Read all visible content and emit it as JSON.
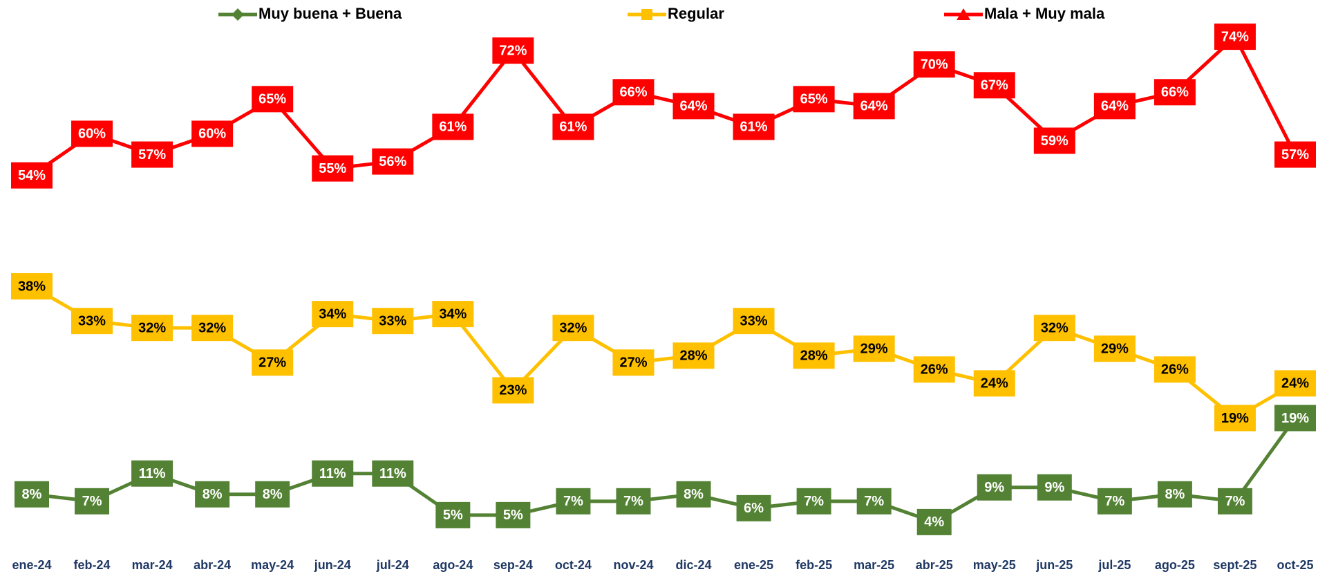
{
  "chart_data": {
    "type": "line",
    "categories": [
      "ene-24",
      "feb-24",
      "mar-24",
      "abr-24",
      "may-24",
      "jun-24",
      "jul-24",
      "ago-24",
      "sep-24",
      "oct-24",
      "nov-24",
      "dic-24",
      "ene-25",
      "feb-25",
      "mar-25",
      "abr-25",
      "may-25",
      "jun-25",
      "jul-25",
      "ago-25",
      "sept-25",
      "oct-25"
    ],
    "ylim": [
      0,
      78
    ],
    "series": [
      {
        "name": "Muy buena + Buena",
        "color": "#548235",
        "label_color": "#ffffff",
        "values": [
          8,
          7,
          11,
          8,
          8,
          11,
          11,
          5,
          5,
          7,
          7,
          8,
          6,
          7,
          7,
          4,
          9,
          9,
          7,
          8,
          7,
          19
        ],
        "value_labels": [
          "8%",
          "7%",
          "11%",
          "8%",
          "8%",
          "11%",
          "11%",
          "5%",
          "5%",
          "7%",
          "7%",
          "8%",
          "6%",
          "7%",
          "7%",
          "4%",
          "9%",
          "9%",
          "7%",
          "8%",
          "7%",
          "19%"
        ]
      },
      {
        "name": "Regular",
        "color": "#ffc000",
        "label_color": "#000000",
        "values": [
          38,
          33,
          32,
          32,
          27,
          34,
          33,
          34,
          23,
          32,
          27,
          28,
          33,
          28,
          29,
          26,
          24,
          32,
          29,
          26,
          19,
          24
        ],
        "value_labels": [
          "38%",
          "33%",
          "32%",
          "32%",
          "27%",
          "34%",
          "33%",
          "34%",
          "23%",
          "32%",
          "27%",
          "28%",
          "33%",
          "28%",
          "29%",
          "26%",
          "24%",
          "32%",
          "29%",
          "26%",
          "19%",
          "24%"
        ]
      },
      {
        "name": "Mala + Muy mala",
        "color": "#ff0000",
        "label_color": "#ffffff",
        "values": [
          54,
          60,
          57,
          60,
          65,
          55,
          56,
          61,
          72,
          61,
          66,
          64,
          61,
          65,
          64,
          70,
          67,
          59,
          64,
          66,
          74,
          57
        ],
        "value_labels": [
          "54%",
          "60%",
          "57%",
          "60%",
          "65%",
          "55%",
          "56%",
          "61%",
          "72%",
          "61%",
          "66%",
          "64%",
          "61%",
          "65%",
          "64%",
          "70%",
          "67%",
          "59%",
          "64%",
          "66%",
          "74%",
          "57%"
        ]
      }
    ]
  }
}
